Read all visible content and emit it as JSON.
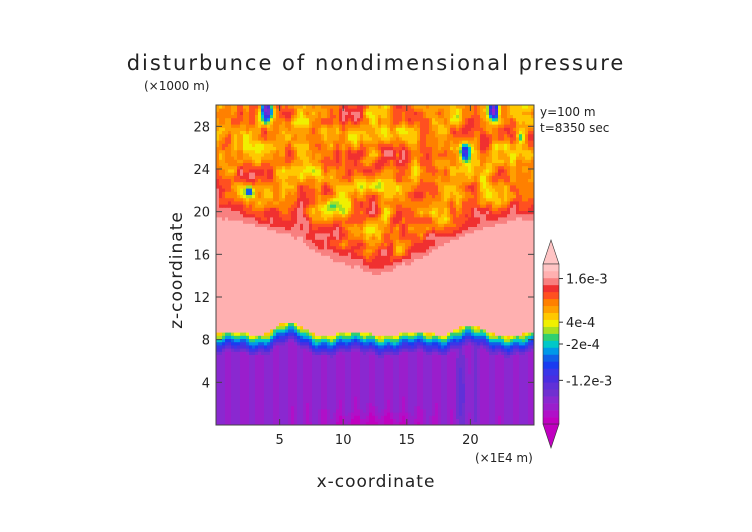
{
  "chart_data": {
    "type": "heatmap",
    "title": "disturbunce of nondimensional pressure",
    "xlabel": "x-coordinate",
    "ylabel": "z-coordinate",
    "x_unit": "(×1E4 m)",
    "y_unit": "(×1000 m)",
    "annotations": [
      "y=100 m",
      "t=8350 sec"
    ],
    "xlim": [
      0,
      25
    ],
    "ylim": [
      0,
      30
    ],
    "x_ticks": [
      5,
      10,
      15,
      20
    ],
    "y_ticks": [
      4,
      8,
      12,
      16,
      20,
      24,
      28
    ],
    "x_tick_labels": [
      "5",
      "10",
      "15",
      "20"
    ],
    "y_tick_labels": [
      "4",
      "8",
      "12",
      "16",
      "20",
      "24",
      "28"
    ],
    "colorbar": {
      "labels": [
        {
          "text": "1.6e-3",
          "value": 0.0016
        },
        {
          "text": "4e-4",
          "value": 0.0004
        },
        {
          "text": "-2e-4",
          "value": -0.0002
        },
        {
          "text": "-1.2e-3",
          "value": -0.0012
        }
      ],
      "levels": [
        -0.0024,
        -0.0022,
        -0.002,
        -0.0018,
        -0.0016,
        -0.0014,
        -0.0012,
        -0.001,
        -0.0008,
        -0.0006,
        -0.0004,
        -0.0002,
        0,
        0.0002,
        0.0004,
        0.0006,
        0.0008,
        0.001,
        0.0012,
        0.0014,
        0.0016,
        0.0018,
        0.002
      ],
      "colors": [
        "#c000c0",
        "#b010c8",
        "#9a1ecc",
        "#8a28d0",
        "#7030d0",
        "#6030d8",
        "#4a2ee0",
        "#3a36e8",
        "#1a3cf0",
        "#1060e8",
        "#0098e8",
        "#00c8c8",
        "#30d070",
        "#a8e020",
        "#f0f000",
        "#ffc800",
        "#ffa000",
        "#ff8000",
        "#ff5020",
        "#f03030",
        "#f88080",
        "#ffb0b0",
        "#ffc4c4"
      ]
    },
    "field_description": "Negative pressure disturbance (magenta/purple) in lower layer z<7 km, sharp gradient through blue-green-yellow-orange near z~8-10 km with ridges near x~5.5 and x~19.5, broad pink positive region z~10-16 km, patchy orange/red/yellow structures above z~15 km with dark blue spots near top at x~4 and x~22."
  }
}
